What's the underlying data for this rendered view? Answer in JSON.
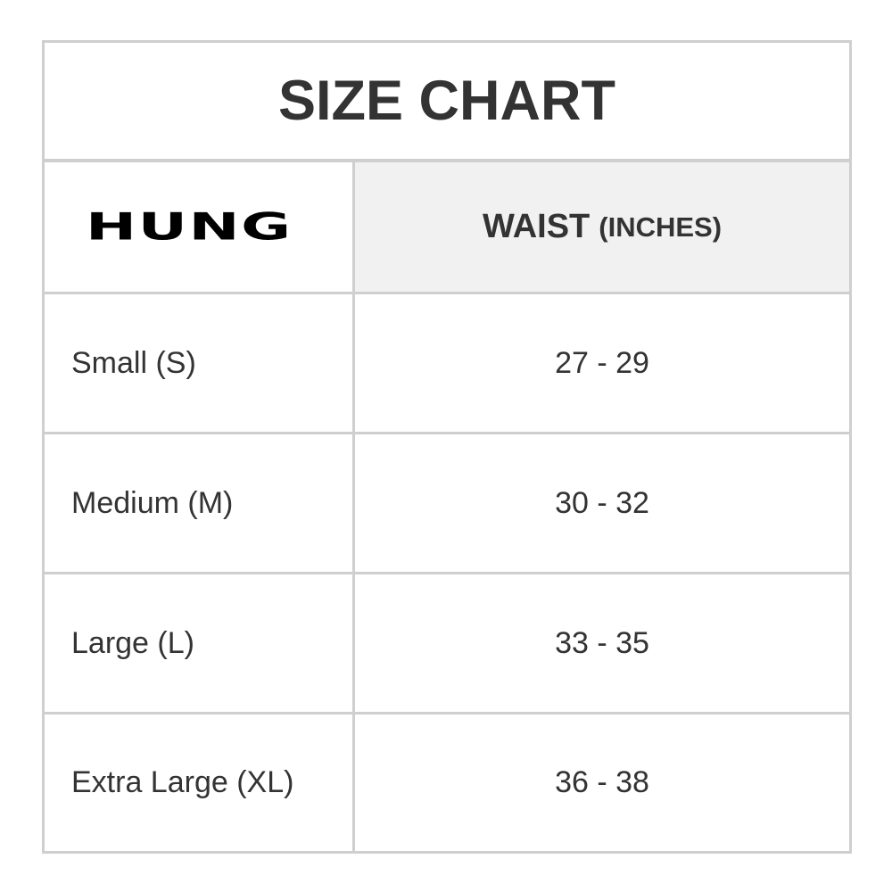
{
  "title": "SIZE CHART",
  "brand_logo": "HUNG",
  "header": {
    "column": "WAIST",
    "unit": "(INCHES)"
  },
  "rows": [
    {
      "size": "Small (S)",
      "waist": "27 - 29"
    },
    {
      "size": "Medium (M)",
      "waist": "30 - 32"
    },
    {
      "size": "Large (L)",
      "waist": "33 - 35"
    },
    {
      "size": "Extra Large (XL)",
      "waist": "36 - 38"
    }
  ]
}
